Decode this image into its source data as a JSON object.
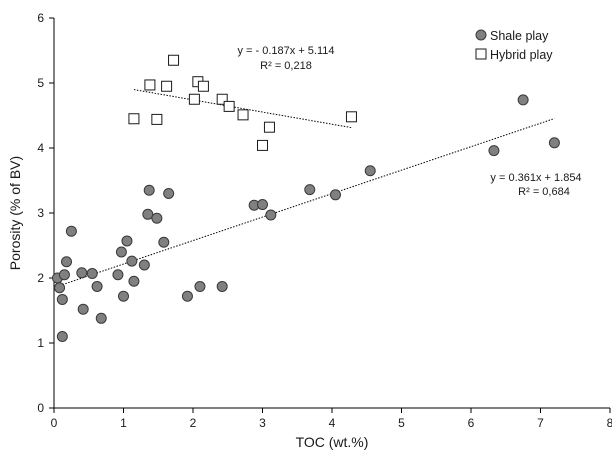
{
  "chart_data": {
    "type": "scatter",
    "xlabel": "TOC (wt.%)",
    "ylabel": "Porosity (% of BV)",
    "xlim": [
      0,
      8
    ],
    "ylim": [
      0,
      6
    ],
    "x_ticks": [
      "0",
      "1",
      "2",
      "3",
      "4",
      "5",
      "6",
      "7",
      "8"
    ],
    "y_ticks": [
      "0",
      "1",
      "2",
      "3",
      "4",
      "5",
      "6"
    ],
    "grid": false,
    "legend_position": "top-right",
    "series": [
      {
        "name": "Shale play",
        "marker": "circle",
        "color": "#808080",
        "points": [
          [
            0.05,
            2.0
          ],
          [
            0.08,
            1.85
          ],
          [
            0.12,
            1.67
          ],
          [
            0.15,
            2.05
          ],
          [
            0.18,
            2.25
          ],
          [
            0.12,
            1.1
          ],
          [
            0.25,
            2.72
          ],
          [
            0.4,
            2.08
          ],
          [
            0.42,
            1.52
          ],
          [
            0.55,
            2.07
          ],
          [
            0.62,
            1.87
          ],
          [
            0.68,
            1.38
          ],
          [
            0.92,
            2.05
          ],
          [
            0.97,
            2.4
          ],
          [
            1.0,
            1.72
          ],
          [
            1.05,
            2.57
          ],
          [
            1.12,
            2.26
          ],
          [
            1.15,
            1.95
          ],
          [
            1.3,
            2.2
          ],
          [
            1.35,
            2.98
          ],
          [
            1.37,
            3.35
          ],
          [
            1.48,
            2.92
          ],
          [
            1.58,
            2.55
          ],
          [
            1.65,
            3.3
          ],
          [
            1.92,
            1.72
          ],
          [
            2.1,
            1.87
          ],
          [
            2.42,
            1.87
          ],
          [
            2.88,
            3.12
          ],
          [
            3.0,
            3.13
          ],
          [
            3.12,
            2.97
          ],
          [
            3.68,
            3.36
          ],
          [
            4.05,
            3.28
          ],
          [
            4.55,
            3.65
          ],
          [
            6.33,
            3.96
          ],
          [
            6.75,
            4.74
          ],
          [
            7.2,
            4.08
          ]
        ],
        "trendline": {
          "slope": 0.361,
          "intercept": 1.854,
          "x_range": [
            0,
            7.2
          ],
          "equation": "y = 0.361x + 1.854",
          "r2": "R² = 0,684"
        }
      },
      {
        "name": "Hybrid play",
        "marker": "square",
        "color": "#ffffff",
        "points": [
          [
            1.15,
            4.45
          ],
          [
            1.38,
            4.97
          ],
          [
            1.48,
            4.44
          ],
          [
            1.62,
            4.95
          ],
          [
            1.72,
            5.35
          ],
          [
            2.02,
            4.75
          ],
          [
            2.07,
            5.02
          ],
          [
            2.15,
            4.95
          ],
          [
            2.42,
            4.75
          ],
          [
            2.52,
            4.64
          ],
          [
            2.72,
            4.51
          ],
          [
            3.0,
            4.04
          ],
          [
            3.1,
            4.32
          ],
          [
            4.28,
            4.48
          ]
        ],
        "trendline": {
          "slope": -0.187,
          "intercept": 5.114,
          "x_range": [
            1.15,
            4.28
          ],
          "equation": "y = - 0.187x + 5.114",
          "r2": "R² = 0,218"
        }
      }
    ]
  }
}
